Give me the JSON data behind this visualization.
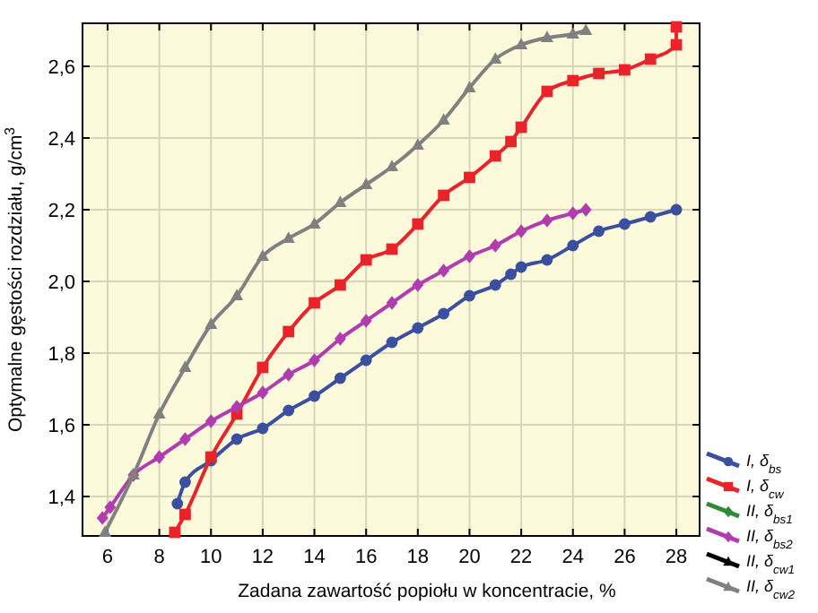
{
  "chart_data": {
    "type": "line",
    "xlabel": "Zadana zawartość popiołu w koncentracie,  %",
    "ylabel": "Optymalne gęstości rozdziału,  g/cm$^{3}$",
    "xlim": [
      5.03,
      28.9
    ],
    "ylim": [
      1.29,
      2.72
    ],
    "xticks": [
      6,
      8,
      10,
      12,
      14,
      16,
      18,
      20,
      22,
      24,
      26,
      28
    ],
    "yticks": [
      {
        "value": 1.4,
        "label": "1,4"
      },
      {
        "value": 1.6,
        "label": "1,6"
      },
      {
        "value": 1.8,
        "label": "1,8"
      },
      {
        "value": 2.0,
        "label": "2,0"
      },
      {
        "value": 2.2,
        "label": "2,2"
      },
      {
        "value": 2.4,
        "label": "2,4"
      },
      {
        "value": 2.6,
        "label": "2,6"
      }
    ],
    "grid": true,
    "legend": "bottom right",
    "series": [
      {
        "name": "I, δ$_{bs}$",
        "color": "#3a4fa0",
        "marker": "circle",
        "x": [
          8.7,
          9,
          10,
          11,
          12,
          13,
          14,
          15,
          16,
          17,
          18,
          19,
          20,
          21,
          21.6,
          22,
          23,
          24,
          25,
          26,
          27,
          28
        ],
        "values": [
          1.38,
          1.44,
          1.5,
          1.56,
          1.59,
          1.64,
          1.68,
          1.73,
          1.78,
          1.83,
          1.87,
          1.91,
          1.96,
          1.99,
          2.02,
          2.04,
          2.06,
          2.1,
          2.14,
          2.16,
          2.18,
          2.2
        ]
      },
      {
        "name": "I, δ$_{cw}$",
        "color": "#e8232a",
        "marker": "square",
        "x": [
          8.6,
          9,
          10,
          11,
          12,
          13,
          14,
          15,
          16,
          17,
          18,
          19,
          20,
          21,
          21.6,
          22,
          23,
          24,
          25,
          26,
          27,
          28,
          28
        ],
        "values": [
          1.3,
          1.35,
          1.51,
          1.63,
          1.76,
          1.86,
          1.94,
          1.99,
          2.06,
          2.09,
          2.16,
          2.24,
          2.29,
          2.35,
          2.39,
          2.43,
          2.53,
          2.56,
          2.58,
          2.59,
          2.62,
          2.66,
          2.71
        ]
      },
      {
        "name": "II, δ$_{bs1}$",
        "color": "#2e8b3a",
        "marker": "diamond"
      },
      {
        "name": "II, δ$_{bs2}$",
        "color": "#b03cb0",
        "marker": "diamond",
        "x": [
          5.8,
          6.1,
          7,
          8,
          9,
          10,
          11,
          12,
          13,
          14,
          15,
          16,
          17,
          18,
          19,
          20,
          21,
          22,
          23,
          24,
          24.5
        ],
        "values": [
          1.34,
          1.37,
          1.46,
          1.51,
          1.56,
          1.61,
          1.65,
          1.69,
          1.74,
          1.78,
          1.84,
          1.89,
          1.94,
          1.99,
          2.03,
          2.07,
          2.1,
          2.14,
          2.17,
          2.19,
          2.2
        ]
      },
      {
        "name": "II, δ$_{cw1}$",
        "color": "#000000",
        "marker": "triangle"
      },
      {
        "name": "II, δ$_{cw2}$",
        "color": "#808080",
        "marker": "triangle",
        "x": [
          5.9,
          7,
          8,
          9,
          10,
          11,
          12,
          13,
          14,
          15,
          16,
          17,
          18,
          19,
          20,
          21,
          22,
          23,
          24,
          24.5
        ],
        "values": [
          1.3,
          1.46,
          1.63,
          1.76,
          1.88,
          1.96,
          2.07,
          2.12,
          2.16,
          2.22,
          2.27,
          2.32,
          2.38,
          2.45,
          2.54,
          2.62,
          2.66,
          2.68,
          2.69,
          2.7
        ]
      }
    ]
  }
}
